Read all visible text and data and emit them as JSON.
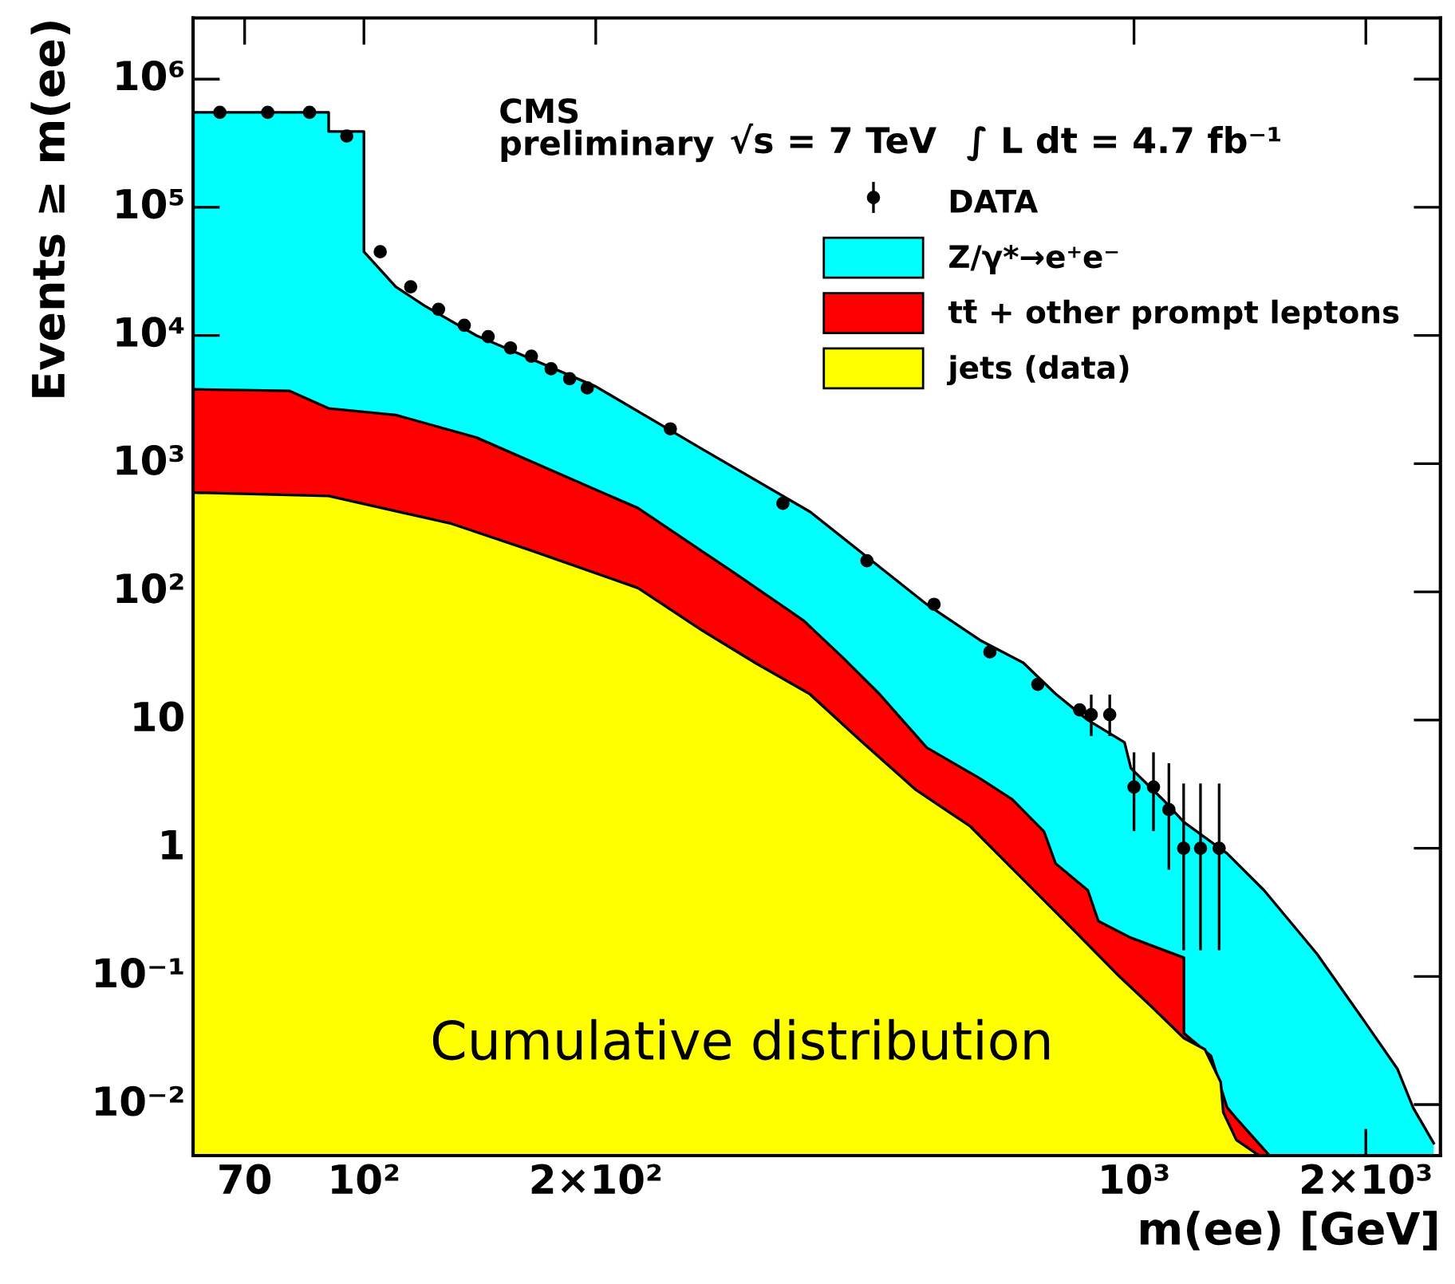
{
  "chart_data": {
    "type": "area",
    "xlabel": "m(ee) [GeV]",
    "ylabel": "Events ≥ m(ee)",
    "log": "xy",
    "xlim": [
      60,
      2500
    ],
    "ylim": [
      0.004,
      3000000
    ],
    "xticks": [
      70,
      {
        "value": 100,
        "label": "10²"
      },
      {
        "value": 200,
        "label": "2×10²"
      },
      {
        "value": 1000,
        "label": "10³"
      },
      {
        "value": 2000,
        "label": "2×10³"
      }
    ],
    "yticks": [
      {
        "value": 0.01,
        "label": "10⁻²"
      },
      {
        "value": 0.1,
        "label": "10⁻¹"
      },
      1,
      10,
      {
        "value": 100,
        "label": "10²"
      },
      {
        "value": 1000,
        "label": "10³"
      },
      {
        "value": 10000,
        "label": "10⁴"
      },
      {
        "value": 100000,
        "label": "10⁵"
      },
      {
        "value": 1000000,
        "label": "10⁶"
      }
    ],
    "legend": "top right",
    "grid": false,
    "annotations": [
      "CMS\npreliminary",
      "√s = 7 TeV",
      "∫ L dt = 4.7 fb⁻¹",
      "Cumulative distribution"
    ],
    "series": [
      {
        "name": "Z/γ*→e⁺e⁻",
        "color": "#00ffff",
        "x": [
          60,
          90,
          90,
          100,
          100,
          110,
          120,
          140,
          200,
          275,
          380,
          538,
          631,
          718,
          791,
          871,
          972,
          991,
          1090,
          1161,
          1321,
          1475,
          1728,
          1995,
          2198,
          2305,
          2450
        ],
        "values": [
          550000,
          550000,
          390000,
          390000,
          45000,
          24000,
          17000,
          10000,
          4000,
          1300,
          420,
          80,
          42,
          28,
          16,
          10,
          6.7,
          4.2,
          2.4,
          1.6,
          0.91,
          0.47,
          0.15,
          0.044,
          0.019,
          0.0094,
          0.005
        ]
      },
      {
        "name": "tt̄ + other prompt leptons",
        "color": "#ff0000",
        "x": [
          60,
          80,
          90,
          110,
          140,
          227,
          275,
          303,
          372,
          418,
          467,
          538,
          631,
          695,
          764,
          791,
          871,
          899,
          991,
          1161,
          1161,
          1259,
          1321,
          1358,
          1500
        ],
        "values": [
          3800,
          3700,
          2700,
          2400,
          1600,
          450,
          207,
          140,
          60,
          31,
          16,
          6.1,
          3.5,
          2.4,
          1.35,
          0.76,
          0.47,
          0.27,
          0.2,
          0.14,
          0.036,
          0.024,
          0.0095,
          0.0078,
          0.004
        ]
      },
      {
        "name": "jets (data)",
        "color": "#ffff00",
        "x": [
          60,
          90,
          130,
          165,
          227,
          275,
          322,
          379,
          444,
          521,
          613,
          718,
          841,
          957,
          1054,
          1161,
          1236,
          1296,
          1306,
          1358,
          1454
        ],
        "values": [
          595,
          560,
          340,
          210,
          107,
          50,
          28,
          16,
          6.7,
          2.85,
          1.48,
          0.57,
          0.22,
          0.1,
          0.058,
          0.033,
          0.027,
          0.015,
          0.0087,
          0.0053,
          0.004
        ]
      },
      {
        "name": "DATA",
        "type": "scatter",
        "color": "#000000",
        "marker": "circle",
        "x": [
          65,
          75,
          85,
          95,
          105,
          115,
          125,
          135,
          145,
          155,
          165,
          175,
          185,
          195,
          250,
          350,
          450,
          550,
          650,
          750,
          850,
          880,
          930,
          1000,
          1060,
          1110,
          1160,
          1220,
          1290
        ],
        "values": [
          550000,
          550000,
          550000,
          360000,
          45000,
          24000,
          16000,
          12000,
          9800,
          8000,
          6900,
          5500,
          4600,
          3900,
          1870,
          490,
          175,
          80,
          34,
          19,
          12,
          11,
          11,
          3,
          3,
          2,
          1,
          1,
          1
        ],
        "errors": [
          null,
          null,
          null,
          null,
          null,
          null,
          null,
          null,
          null,
          null,
          null,
          null,
          null,
          null,
          null,
          null,
          null,
          null,
          null,
          null,
          null,
          [
            7.5,
            15.8
          ],
          [
            7.5,
            15.8
          ],
          [
            1.36,
            5.6
          ],
          [
            1.36,
            5.6
          ],
          [
            0.68,
            4.6
          ],
          [
            0.16,
            3.2
          ],
          [
            0.16,
            3.2
          ],
          [
            0.16,
            3.2
          ]
        ]
      }
    ]
  }
}
